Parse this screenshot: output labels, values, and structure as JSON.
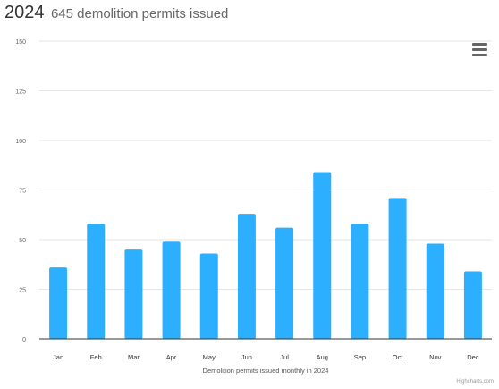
{
  "header": {
    "year": "2024",
    "subtitle": "645 demolition permits issued"
  },
  "menu": {
    "icon": "hamburger-menu-icon"
  },
  "credit": "Highcharts.com",
  "chart_data": {
    "type": "bar",
    "categories": [
      "Jan",
      "Feb",
      "Mar",
      "Apr",
      "May",
      "Jun",
      "Jul",
      "Aug",
      "Sep",
      "Oct",
      "Nov",
      "Dec"
    ],
    "values": [
      36,
      58,
      45,
      49,
      43,
      63,
      56,
      84,
      58,
      71,
      48,
      34
    ],
    "xlabel": "Demolition permits issued monthly in 2024",
    "ylabel": "",
    "ylim": [
      0,
      150
    ],
    "yticks": [
      0,
      25,
      50,
      75,
      100,
      125,
      150
    ],
    "grid": true,
    "legend": "none",
    "bar_color": "#2caffe"
  }
}
